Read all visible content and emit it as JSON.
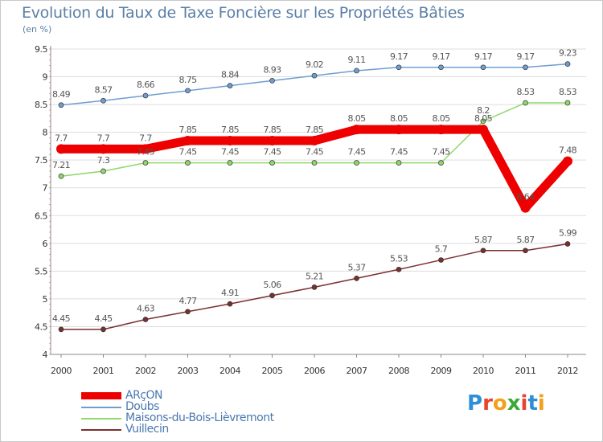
{
  "title": "Evolution du Taux de Taxe Foncière sur les Propriétés Bâties",
  "unit": "(en %)",
  "logo": {
    "text": "Proxiti",
    "colors": [
      "#2e8fd6",
      "#e8432f",
      "#f2a01c",
      "#3aa935",
      "#e8432f",
      "#2e8fd6",
      "#f2a01c"
    ]
  },
  "chart_data": {
    "type": "line",
    "title": "Evolution du Taux de Taxe Foncière sur les Propriétés Bâties",
    "ylabel": "(en %)",
    "xlabel": "",
    "x": [
      "2000",
      "2001",
      "2002",
      "2003",
      "2004",
      "2005",
      "2006",
      "2007",
      "2008",
      "2009",
      "2010",
      "2011",
      "2012"
    ],
    "ylim": [
      4,
      9.5
    ],
    "yticks": [
      "4",
      "4.5",
      "5",
      "5.5",
      "6",
      "6.5",
      "7",
      "7.5",
      "8",
      "8.5",
      "9",
      "9.5"
    ],
    "legend_position": "bottom-left",
    "series": [
      {
        "name": "ARçON",
        "color": "#ee0000",
        "values": [
          7.7,
          7.7,
          7.7,
          7.85,
          7.85,
          7.85,
          7.85,
          8.05,
          8.05,
          8.05,
          8.05,
          6.64,
          7.48
        ],
        "labels": [
          "7.7",
          "7.7",
          "7.7",
          "7.85",
          "7.85",
          "7.85",
          "7.85",
          "8.05",
          "8.05",
          "8.05",
          "8.05",
          "6.64",
          "7.48"
        ]
      },
      {
        "name": "Doubs",
        "color": "#6e9ed0",
        "values": [
          8.49,
          8.57,
          8.66,
          8.75,
          8.84,
          8.93,
          9.02,
          9.11,
          9.17,
          9.17,
          9.17,
          9.17,
          9.23
        ],
        "labels": [
          "8.49",
          "8.57",
          "8.66",
          "8.75",
          "8.84",
          "8.93",
          "9.02",
          "9.11",
          "9.17",
          "9.17",
          "9.17",
          "9.17",
          "9.23"
        ]
      },
      {
        "name": "Maisons-du-Bois-Lièvremont",
        "color": "#8fd86b",
        "values": [
          7.21,
          7.3,
          7.45,
          7.45,
          7.45,
          7.45,
          7.45,
          7.45,
          7.45,
          7.45,
          8.2,
          8.53,
          8.53
        ],
        "labels": [
          "7.21",
          "7.3",
          "7.45",
          "7.45",
          "7.45",
          "7.45",
          "7.45",
          "7.45",
          "7.45",
          "7.45",
          "8.2",
          "8.53",
          "8.53"
        ]
      },
      {
        "name": "Vuillecin",
        "color": "#7a2f2f",
        "values": [
          4.45,
          4.45,
          4.63,
          4.77,
          4.91,
          5.06,
          5.21,
          5.37,
          5.53,
          5.7,
          5.87,
          5.87,
          5.99
        ],
        "labels": [
          "4.45",
          "4.45",
          "4.63",
          "4.77",
          "4.91",
          "5.06",
          "5.21",
          "5.37",
          "5.53",
          "5.7",
          "5.87",
          "5.87",
          "5.99"
        ]
      }
    ]
  }
}
